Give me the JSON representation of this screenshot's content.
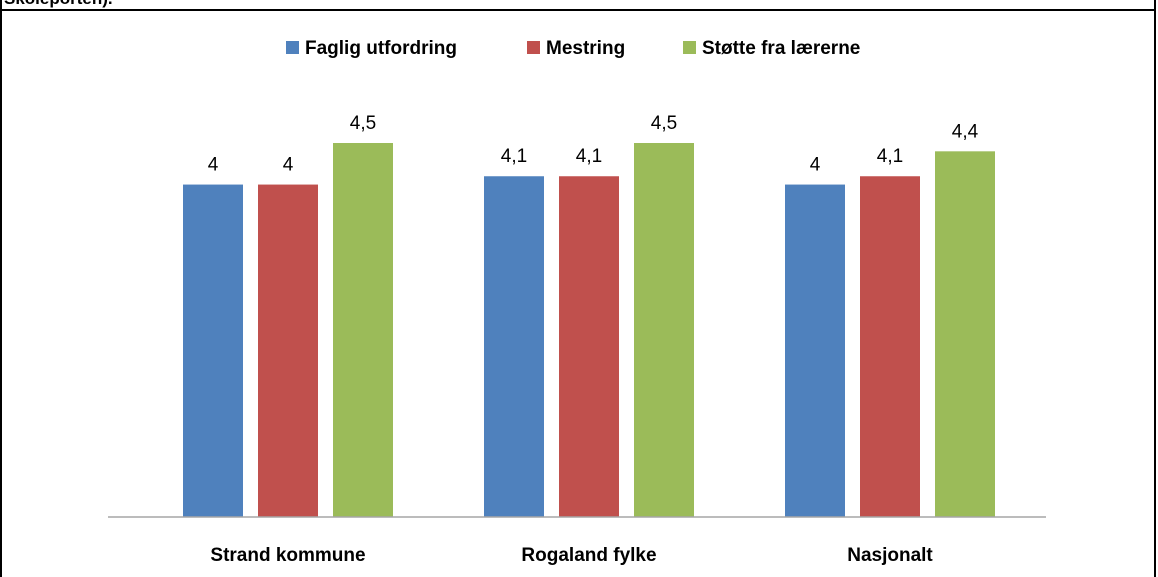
{
  "caption": "Skoleporten).",
  "chart_data": {
    "type": "bar",
    "categories": [
      "Strand kommune",
      "Rogaland fylke",
      "Nasjonalt"
    ],
    "series": [
      {
        "name": "Faglig utfordring",
        "color": "#4F81BD",
        "values": [
          4,
          4.1,
          4
        ],
        "labels": [
          "4",
          "4,1",
          "4"
        ]
      },
      {
        "name": "Mestring",
        "color": "#C0504D",
        "values": [
          4,
          4.1,
          4.1
        ],
        "labels": [
          "4",
          "4,1",
          "4,1"
        ]
      },
      {
        "name": "Støtte fra lærerne",
        "color": "#9BBB59",
        "values": [
          4.5,
          4.5,
          4.4
        ],
        "labels": [
          "4,5",
          "4,5",
          "4,4"
        ]
      }
    ],
    "ylim": [
      0,
      5
    ],
    "grid": false,
    "legend_position": "top",
    "axis_color": "#A6A6A6"
  }
}
